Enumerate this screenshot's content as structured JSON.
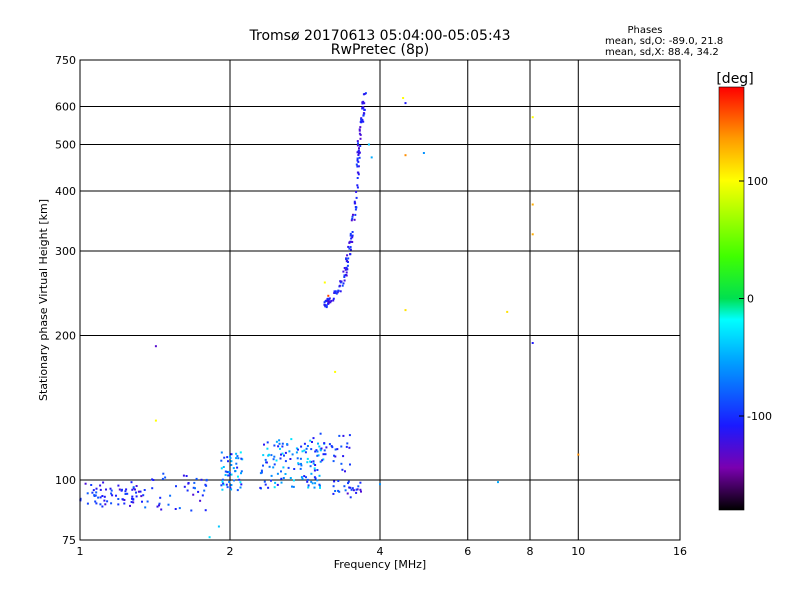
{
  "chart_data": {
    "type": "scatter",
    "title": "Tromsø 20170613 05:04:00-05:05:43",
    "subtitle": "RwPretec (8p)",
    "xlabel": "Frequency [MHz]",
    "ylabel": "Stationary phase Virtual Height [km]",
    "x_scale": "log",
    "y_scale": "log",
    "xlim": [
      1,
      16
    ],
    "ylim": [
      75,
      750
    ],
    "x_ticks": [
      1,
      2,
      4,
      6,
      8,
      10,
      16
    ],
    "y_ticks": [
      75,
      100,
      200,
      300,
      400,
      500,
      600,
      750
    ],
    "grid": true,
    "phase_stats": {
      "heading": "Phases",
      "line_o": "mean, sd,O: -89.0, 21.8",
      "line_x": "mean, sd,X:  88.4, 34.2"
    },
    "colorbar": {
      "label": "[deg]",
      "range": [
        -180,
        180
      ],
      "ticks": [
        -100,
        0,
        100
      ]
    },
    "clusters": [
      {
        "xr": [
          1.0,
          1.35
        ],
        "yr": [
          88,
          99
        ],
        "n": 70,
        "phase": -105,
        "spread": 25
      },
      {
        "xr": [
          1.35,
          1.8
        ],
        "yr": [
          86,
          104
        ],
        "n": 40,
        "phase": -100,
        "spread": 30
      },
      {
        "xr": [
          1.92,
          2.12
        ],
        "yr": [
          95,
          115
        ],
        "n": 55,
        "phase": -65,
        "spread": 45
      },
      {
        "xr": [
          2.3,
          3.1
        ],
        "yr": [
          96,
          122
        ],
        "n": 120,
        "phase": -70,
        "spread": 45
      },
      {
        "xr": [
          2.9,
          3.5
        ],
        "yr": [
          104,
          125
        ],
        "n": 35,
        "phase": -100,
        "spread": 20
      },
      {
        "xr": [
          3.2,
          3.7
        ],
        "yr": [
          92,
          100
        ],
        "n": 25,
        "phase": -100,
        "spread": 30
      }
    ],
    "f_trace": {
      "x": [
        3.1,
        3.2,
        3.3,
        3.4,
        3.45,
        3.5,
        3.55,
        3.6,
        3.62,
        3.65,
        3.7,
        3.72
      ],
      "y": [
        232,
        238,
        248,
        268,
        288,
        318,
        360,
        420,
        470,
        530,
        590,
        640
      ],
      "n": 150,
      "phase": -110
    },
    "outliers": [
      {
        "x": 4.5,
        "y": 610,
        "phase": -110
      },
      {
        "x": 4.45,
        "y": 625,
        "phase": 100
      },
      {
        "x": 4.5,
        "y": 475,
        "phase": 140
      },
      {
        "x": 4.9,
        "y": 480,
        "phase": -60
      },
      {
        "x": 3.85,
        "y": 470,
        "phase": -50
      },
      {
        "x": 3.8,
        "y": 500,
        "phase": -40
      },
      {
        "x": 3.1,
        "y": 258,
        "phase": 100
      },
      {
        "x": 3.15,
        "y": 242,
        "phase": 160
      },
      {
        "x": 4.5,
        "y": 226,
        "phase": 110
      },
      {
        "x": 7.2,
        "y": 224,
        "phase": 110
      },
      {
        "x": 8.1,
        "y": 570,
        "phase": 100
      },
      {
        "x": 8.1,
        "y": 375,
        "phase": 130
      },
      {
        "x": 8.1,
        "y": 325,
        "phase": 130
      },
      {
        "x": 8.1,
        "y": 193,
        "phase": -110
      },
      {
        "x": 1.42,
        "y": 190,
        "phase": -130
      },
      {
        "x": 1.42,
        "y": 133,
        "phase": 100
      },
      {
        "x": 3.25,
        "y": 168,
        "phase": 100
      },
      {
        "x": 6.9,
        "y": 99,
        "phase": -50
      },
      {
        "x": 10.0,
        "y": 113,
        "phase": 140
      },
      {
        "x": 4.0,
        "y": 98,
        "phase": -60
      },
      {
        "x": 1.9,
        "y": 80,
        "phase": -40
      },
      {
        "x": 1.82,
        "y": 76,
        "phase": -30
      }
    ]
  }
}
